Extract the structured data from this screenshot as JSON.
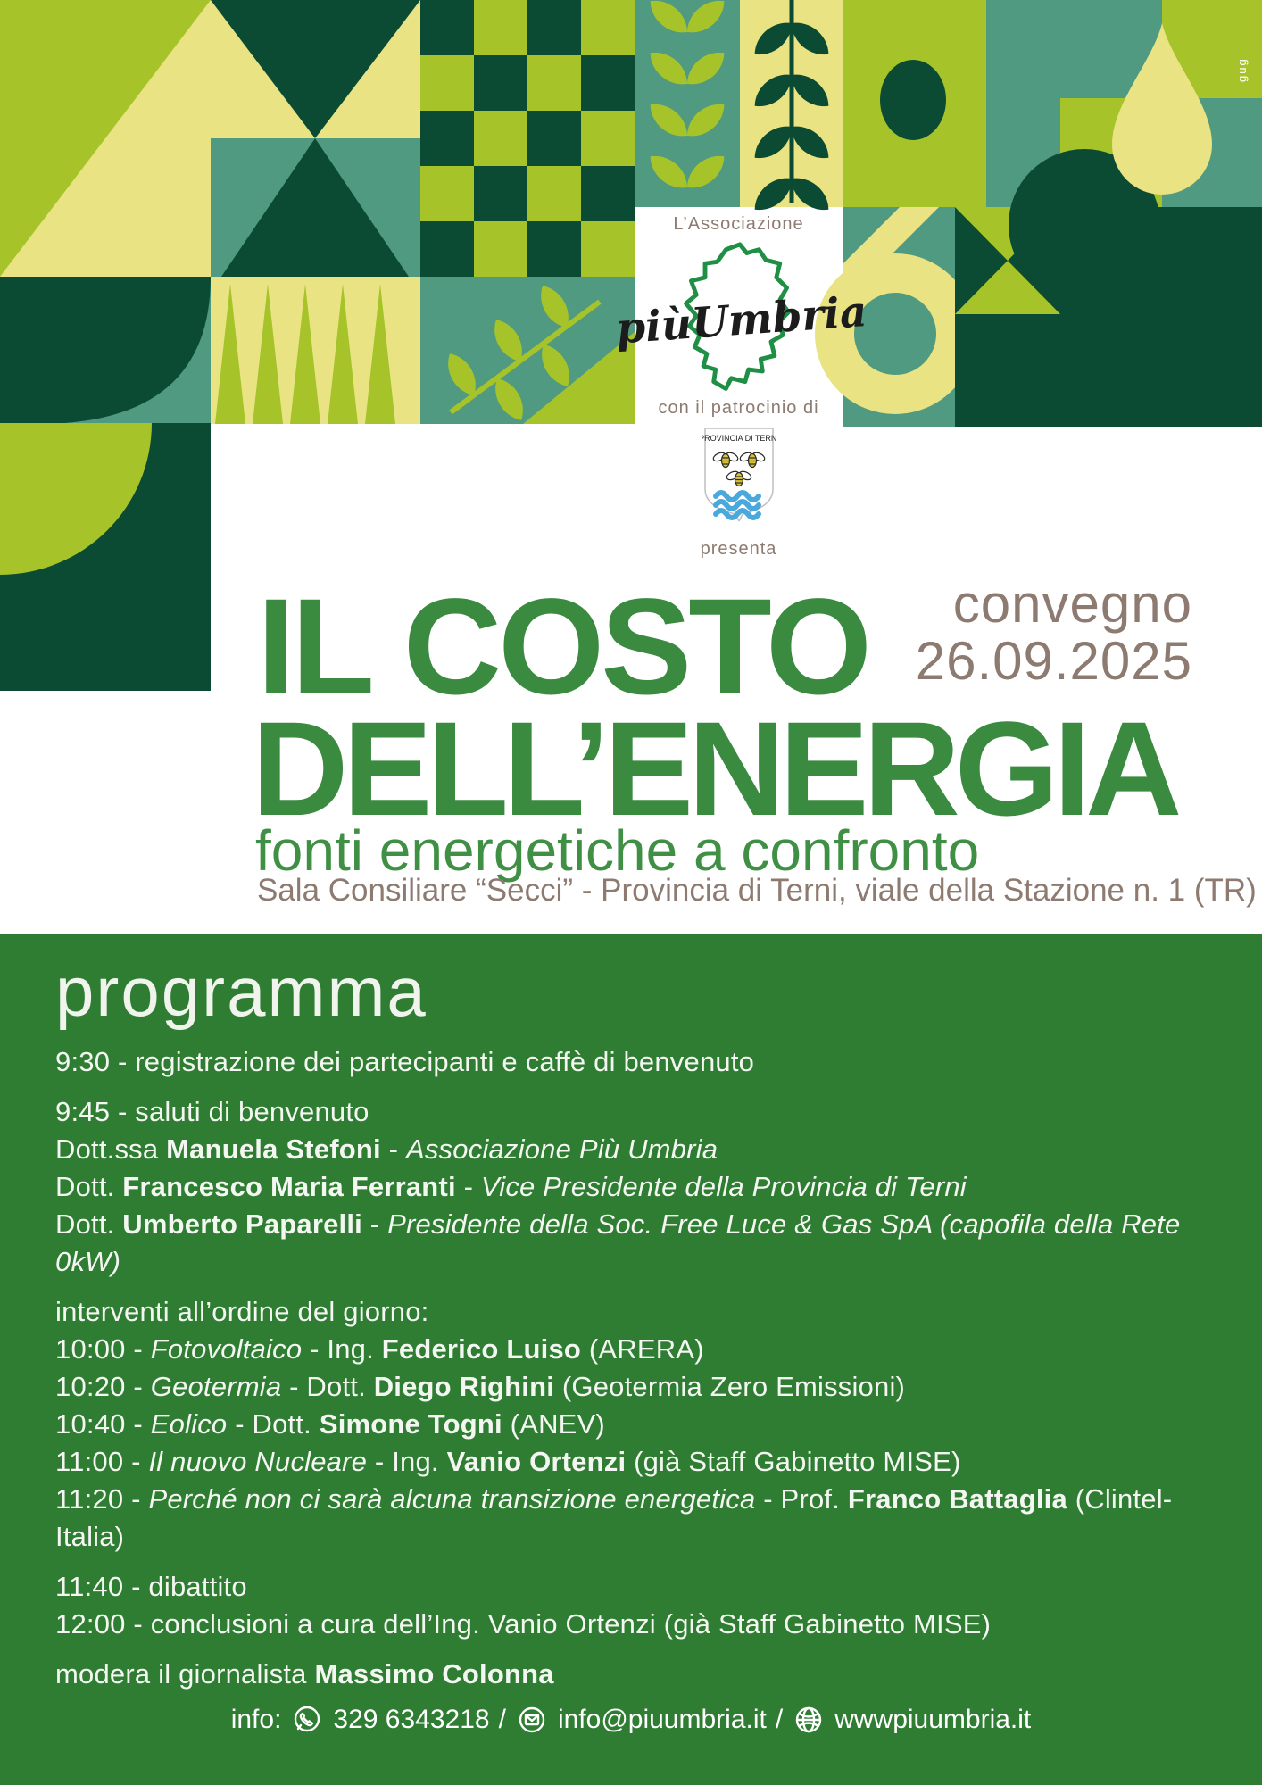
{
  "colors": {
    "yg": "#a6c42a",
    "pale": "#e9e383",
    "teal": "#4f9a80",
    "dark": "#0b4a33",
    "program-bg": "#2f7d33",
    "title-green": "#3a8a40",
    "subtitle-green": "#3f9045",
    "warmgray": "#8d7a70",
    "map-green": "#1f8f45",
    "wave-blue": "#49a8dc",
    "bee-yellow": "#d8c23a"
  },
  "banner": {
    "credit": "gug"
  },
  "logo_block": {
    "association_label": "L’Associazione",
    "logo_text": "piùUmbria",
    "patronage_label": "con il patrocinio di",
    "emblem_text": "PROVINCIA DI TERNI",
    "presents_label": "presenta"
  },
  "title_block": {
    "title_line1": "IL COSTO",
    "title_line2": "DELL’ENERGIA",
    "event_type": "convegno",
    "event_date": "26.09.2025",
    "subtitle": "fonti energetiche a confronto",
    "venue": "Sala Consiliare “Secci” - Provincia di Terni, viale della Stazione n. 1 (TR)"
  },
  "program": {
    "heading": "programma",
    "groups": [
      [
        [
          {
            "t": "9:30 - registrazione dei partecipanti e caffè di benvenuto"
          }
        ]
      ],
      [
        [
          {
            "t": "9:45 - saluti di benvenuto"
          }
        ],
        [
          {
            "t": "Dott.ssa "
          },
          {
            "t": "Manuela Stefoni",
            "b": true
          },
          {
            "t": " - "
          },
          {
            "t": "Associazione Più Umbria",
            "i": true
          }
        ],
        [
          {
            "t": "Dott. "
          },
          {
            "t": "Francesco Maria Ferranti",
            "b": true
          },
          {
            "t": " - "
          },
          {
            "t": "Vice Presidente della Provincia di Terni",
            "i": true
          }
        ],
        [
          {
            "t": "Dott. "
          },
          {
            "t": "Umberto Paparelli",
            "b": true
          },
          {
            "t": " - "
          },
          {
            "t": "Presidente della Soc. Free Luce & Gas SpA (capofila della Rete 0kW)",
            "i": true
          }
        ]
      ],
      [
        [
          {
            "t": "interventi all’ordine del giorno:"
          }
        ],
        [
          {
            "t": "10:00 - "
          },
          {
            "t": "Fotovoltaico",
            "i": true
          },
          {
            "t": " - Ing. "
          },
          {
            "t": "Federico Luiso",
            "b": true
          },
          {
            "t": " (ARERA)"
          }
        ],
        [
          {
            "t": "10:20 - "
          },
          {
            "t": "Geotermia",
            "i": true
          },
          {
            "t": " - Dott. "
          },
          {
            "t": "Diego Righini",
            "b": true
          },
          {
            "t": " (Geotermia Zero Emissioni)"
          }
        ],
        [
          {
            "t": "10:40 - "
          },
          {
            "t": "Eolico",
            "i": true
          },
          {
            "t": " - Dott. "
          },
          {
            "t": "Simone Togni",
            "b": true
          },
          {
            "t": " (ANEV)"
          }
        ],
        [
          {
            "t": "11:00 - "
          },
          {
            "t": "Il nuovo Nucleare",
            "i": true
          },
          {
            "t": " - Ing. "
          },
          {
            "t": "Vanio Ortenzi",
            "b": true
          },
          {
            "t": " (già Staff Gabinetto MISE)"
          }
        ],
        [
          {
            "t": "11:20 - "
          },
          {
            "t": "Perché non ci sarà alcuna transizione energetica",
            "i": true
          },
          {
            "t": " - Prof. "
          },
          {
            "t": "Franco Battaglia",
            "b": true
          },
          {
            "t": " (Clintel-Italia)"
          }
        ]
      ],
      [
        [
          {
            "t": "11:40 - dibattito"
          }
        ],
        [
          {
            "t": "12:00 - conclusioni a cura dell’Ing. Vanio Ortenzi (già Staff Gabinetto MISE)"
          }
        ]
      ],
      [
        [
          {
            "t": "modera il giornalista "
          },
          {
            "t": "Massimo Colonna",
            "b": true
          }
        ]
      ]
    ]
  },
  "footer": {
    "info_label": "info:",
    "phone": "329 6343218",
    "email": "info@piuumbria.it",
    "website": "wwwpiuumbria.it",
    "sep": "/"
  }
}
